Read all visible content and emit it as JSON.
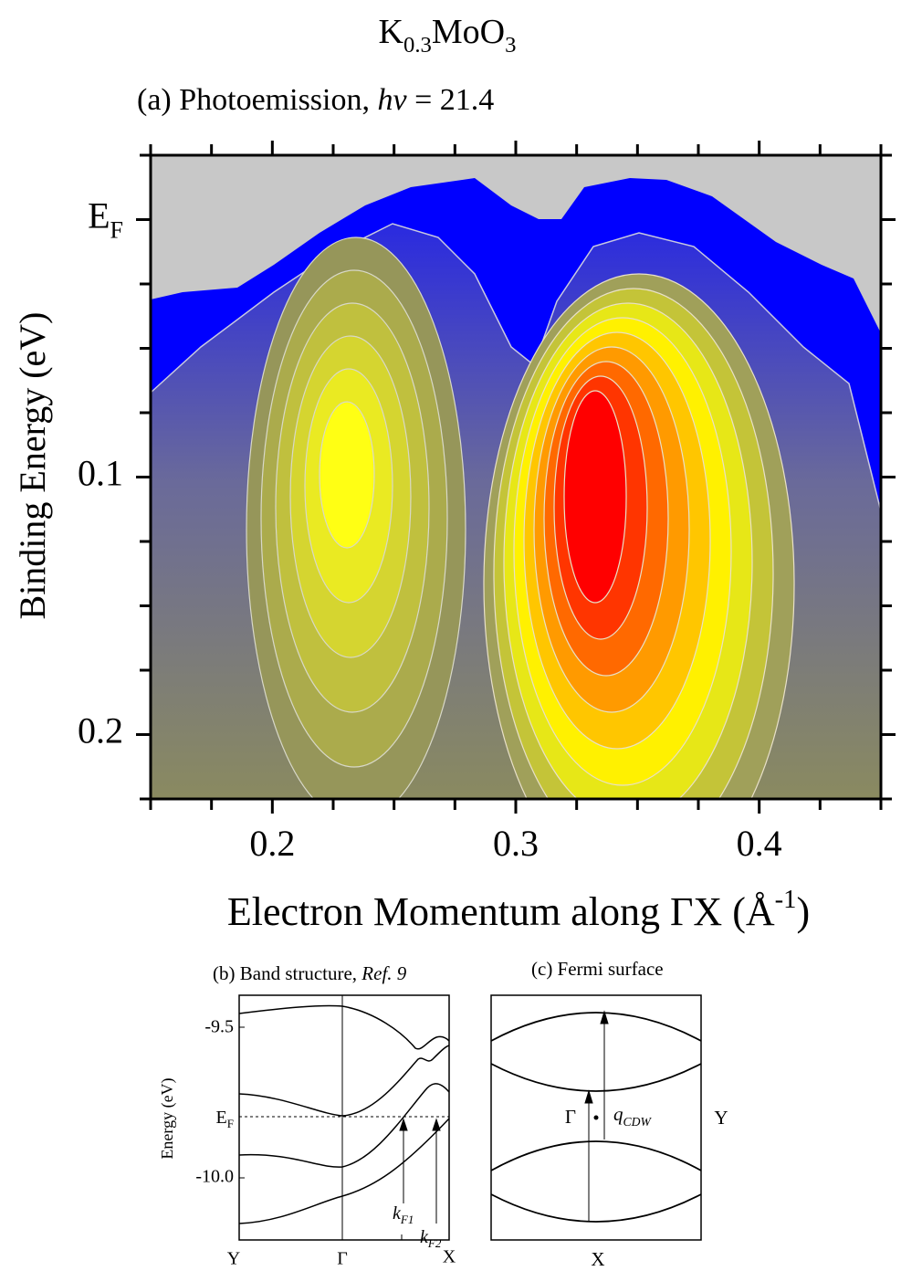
{
  "chart_data": {
    "type": "contour",
    "title": [
      "K",
      "0.3",
      "MoO",
      "3"
    ],
    "subtitle": [
      "(a) Photoemission, ",
      "hν",
      " = 21.4"
    ],
    "xlabel": [
      "Electron Momentum along ΓX (Å",
      "-1",
      ")"
    ],
    "ylabel": "Binding Energy (eV)",
    "xlim": [
      0.15,
      0.45
    ],
    "xticks": [
      0.2,
      0.3,
      0.4
    ],
    "xminorticks": [
      0.15,
      0.175,
      0.225,
      0.25,
      0.275,
      0.325,
      0.35,
      0.375,
      0.425,
      0.45
    ],
    "ylim": [
      -0.025,
      0.225
    ],
    "y_inverted": true,
    "yticks": [
      {
        "value": 0,
        "label": [
          "E",
          "F"
        ]
      },
      0.1,
      0.2
    ],
    "yminorticks": [
      -0.025,
      0.025,
      0.05,
      0.075,
      0.125,
      0.15,
      0.175,
      0.225
    ]
  },
  "panel_b": {
    "title": [
      "(b) Band structure, ",
      "Ref. 9"
    ],
    "ylabel": "Energy (eV)",
    "yticks": [
      "-9.5",
      [
        "E",
        "F"
      ],
      "-10.0"
    ],
    "xticks": [
      "Y",
      "Γ",
      "X"
    ],
    "annotations": [
      [
        "k",
        "F1"
      ],
      [
        "k",
        "F2"
      ]
    ]
  },
  "panel_c": {
    "title": "(c) Fermi surface",
    "labels": [
      "Γ",
      [
        "q",
        "CDW"
      ],
      "Y",
      "X"
    ]
  }
}
